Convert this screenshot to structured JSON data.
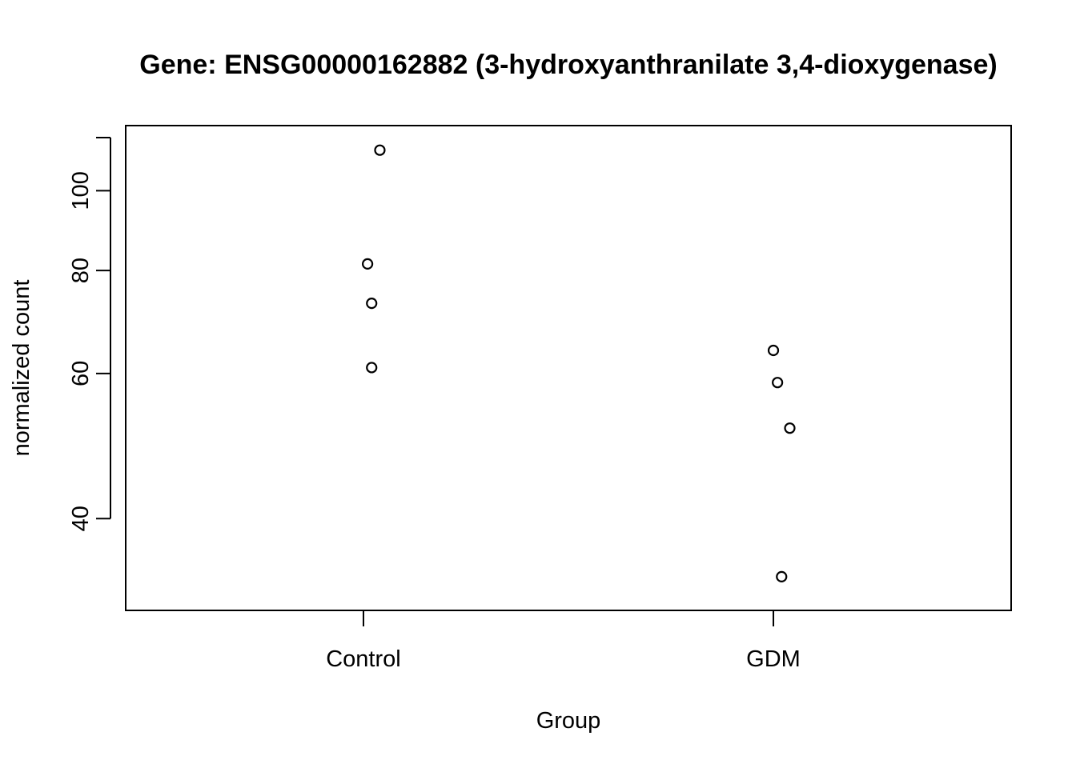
{
  "chart_data": {
    "type": "scatter",
    "title": "Gene: ENSG00000162882 (3-hydroxyanthranilate 3,4-dioxygenase)",
    "xlabel": "Group",
    "ylabel": "normalized count",
    "categories": [
      "Control",
      "GDM"
    ],
    "y_scale": "log",
    "y_ticks": [
      40,
      60,
      80,
      100
    ],
    "ylim": [
      32,
      116
    ],
    "grid": false,
    "points": [
      {
        "group": "Control",
        "jitter": 0.04,
        "y": 112
      },
      {
        "group": "Control",
        "jitter": 0.01,
        "y": 81.5
      },
      {
        "group": "Control",
        "jitter": 0.02,
        "y": 73
      },
      {
        "group": "Control",
        "jitter": 0.02,
        "y": 61
      },
      {
        "group": "GDM",
        "jitter": 0.0,
        "y": 64
      },
      {
        "group": "GDM",
        "jitter": 0.01,
        "y": 58.5
      },
      {
        "group": "GDM",
        "jitter": 0.04,
        "y": 51.5
      },
      {
        "group": "GDM",
        "jitter": 0.02,
        "y": 34
      }
    ]
  }
}
